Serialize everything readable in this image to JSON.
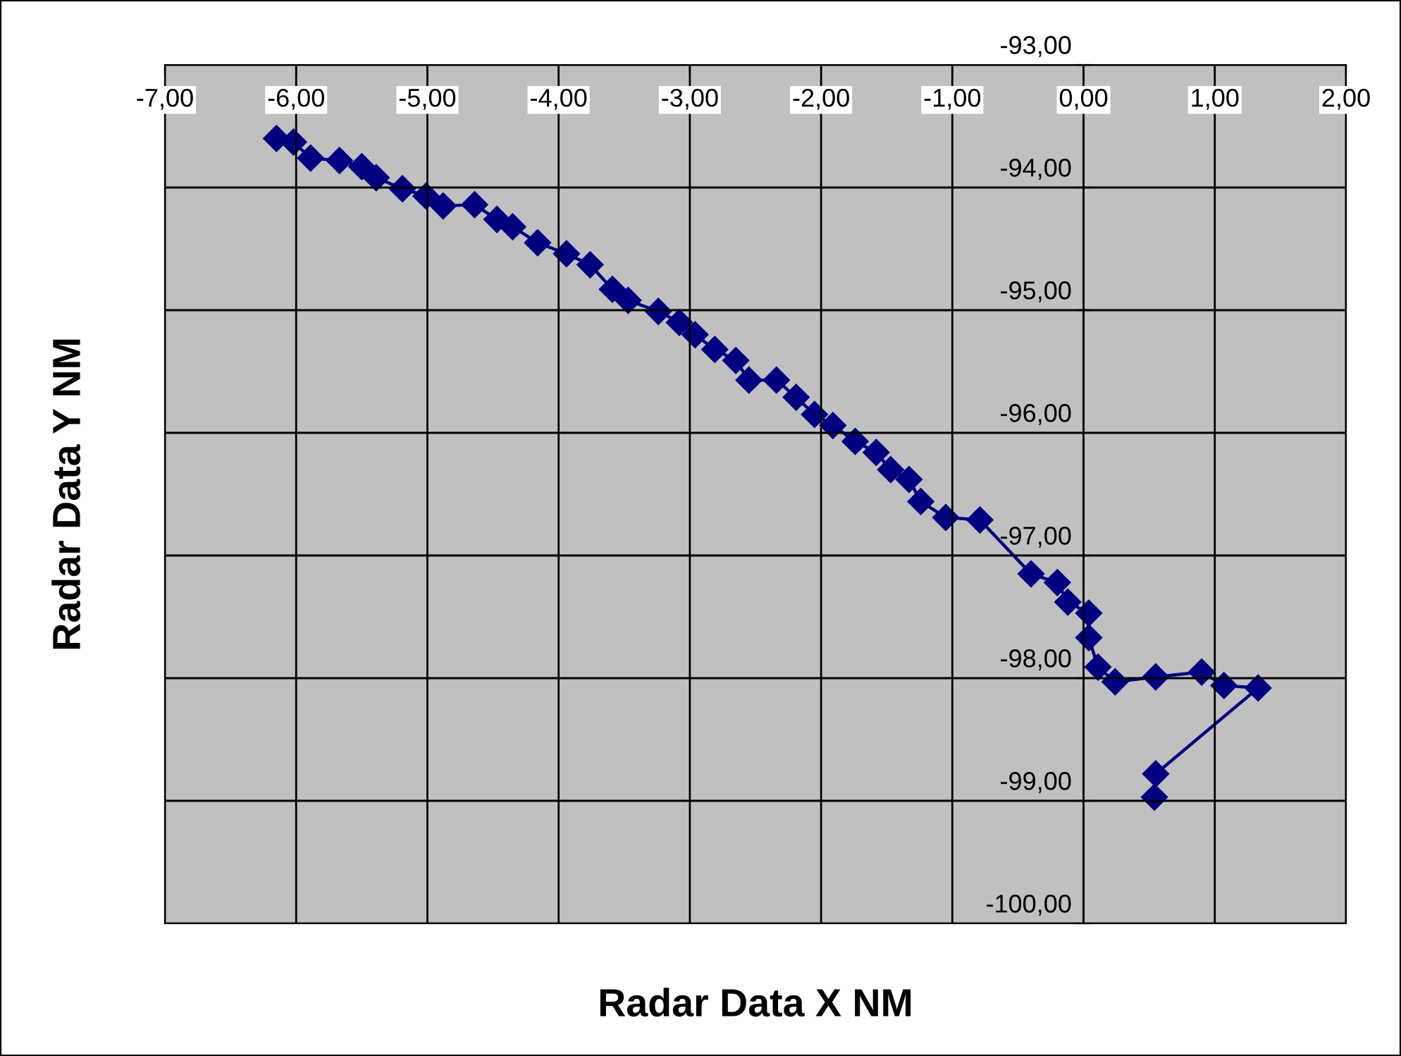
{
  "chart_data": {
    "type": "line",
    "xlabel": "Radar Data X NM",
    "ylabel": "Radar Data Y NM",
    "series": [
      {
        "color": "#000080",
        "x": [
          -6.15,
          -6.02,
          -5.89,
          -5.67,
          -5.5,
          -5.39,
          -5.19,
          -5.01,
          -4.88,
          -4.64,
          -4.47,
          -4.35,
          -4.16,
          -3.94,
          -3.76,
          -3.59,
          -3.47,
          -3.24,
          -3.08,
          -2.96,
          -2.81,
          -2.65,
          -2.55,
          -2.34,
          -2.19,
          -2.05,
          -1.91,
          -1.74,
          -1.58,
          -1.47,
          -1.33,
          -1.24,
          -1.05,
          -0.79,
          -0.4,
          -0.2,
          -0.12,
          0.04,
          0.04,
          0.11,
          0.24,
          0.55,
          0.9,
          1.07,
          1.33,
          0.55,
          0.54
        ],
        "values": [
          -93.6,
          -93.63,
          -93.76,
          -93.78,
          -93.83,
          -93.92,
          -94.01,
          -94.07,
          -94.15,
          -94.14,
          -94.26,
          -94.32,
          -94.45,
          -94.54,
          -94.63,
          -94.83,
          -94.92,
          -95.01,
          -95.1,
          -95.2,
          -95.32,
          -95.41,
          -95.57,
          -95.57,
          -95.71,
          -95.85,
          -95.94,
          -96.07,
          -96.16,
          -96.3,
          -96.38,
          -96.56,
          -96.69,
          -96.71,
          -97.15,
          -97.22,
          -97.38,
          -97.47,
          -97.67,
          -97.91,
          -98.03,
          -97.99,
          -97.95,
          -98.06,
          -98.08,
          -98.78,
          -98.97
        ]
      }
    ],
    "xlim": [
      -7,
      2
    ],
    "xticks": [
      {
        "value": -7,
        "label": "-7,00"
      },
      {
        "value": -6,
        "label": "-6,00"
      },
      {
        "value": -5,
        "label": "-5,00"
      },
      {
        "value": -4,
        "label": "-4,00"
      },
      {
        "value": -3,
        "label": "-3,00"
      },
      {
        "value": -2,
        "label": "-2,00"
      },
      {
        "value": -1,
        "label": "-1,00"
      },
      {
        "value": 0,
        "label": "0,00"
      },
      {
        "value": 1,
        "label": "1,00"
      },
      {
        "value": 2,
        "label": "2,00"
      }
    ],
    "ylim": [
      -100,
      -93
    ],
    "yticks": [
      {
        "value": -100,
        "label": "-100,00"
      },
      {
        "value": -99,
        "label": "-99,00"
      },
      {
        "value": -98,
        "label": "-98,00"
      },
      {
        "value": -97,
        "label": "-97,00"
      },
      {
        "value": -96,
        "label": "-96,00"
      },
      {
        "value": -95,
        "label": "-95,00"
      },
      {
        "value": -94,
        "label": "-94,00"
      },
      {
        "value": -93,
        "label": "-93,00"
      }
    ],
    "grid": true,
    "marker": "diamond",
    "line_style": "solid"
  }
}
